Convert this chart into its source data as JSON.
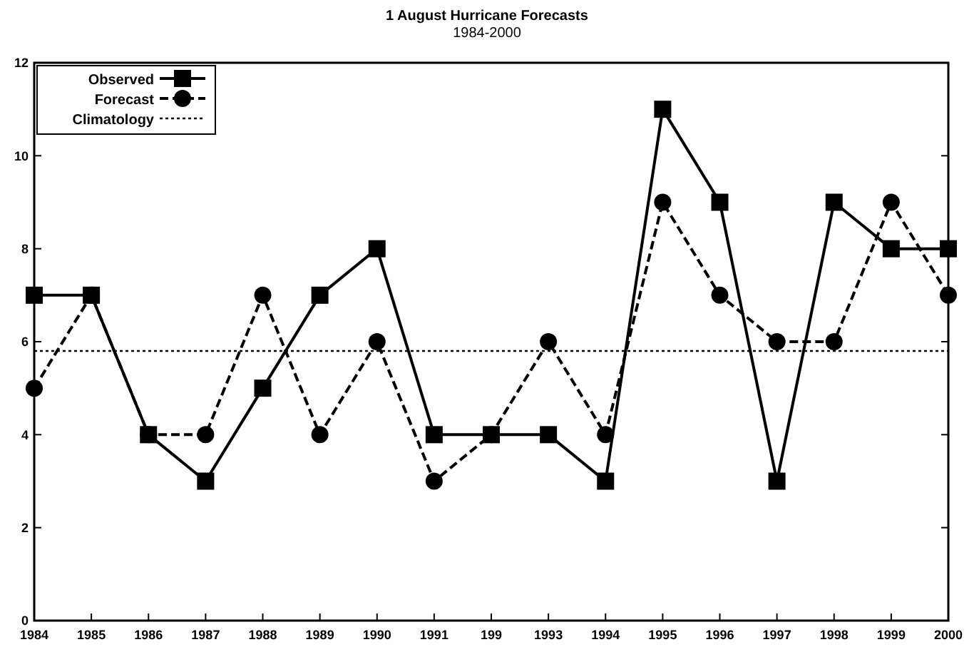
{
  "chart_data": {
    "type": "line",
    "title": "1 August Hurricane Forecasts",
    "subtitle": "1984-2000",
    "categories": [
      "1984",
      "1985",
      "1986",
      "1987",
      "1988",
      "1989",
      "1990",
      "1991",
      "199",
      "1993",
      "1994",
      "1995",
      "1996",
      "1997",
      "1998",
      "1999",
      "2000"
    ],
    "series": [
      {
        "name": "Observed",
        "color": "#000000",
        "marker": "square",
        "line_style": "solid",
        "values": [
          7,
          7,
          4,
          3,
          5,
          7,
          8,
          4,
          4,
          4,
          3,
          11,
          9,
          3,
          9,
          8,
          8
        ]
      },
      {
        "name": "Forecast",
        "color": "#000000",
        "marker": "circle",
        "line_style": "dashed",
        "values": [
          5,
          7,
          4,
          4,
          7,
          4,
          6,
          3,
          4,
          6,
          4,
          9,
          7,
          6,
          6,
          9,
          7
        ]
      },
      {
        "name": "Climatology",
        "color": "#000000",
        "marker": "none",
        "line_style": "dotted",
        "values": [
          5.8,
          5.8,
          5.8,
          5.8,
          5.8,
          5.8,
          5.8,
          5.8,
          5.8,
          5.8,
          5.8,
          5.8,
          5.8,
          5.8,
          5.8,
          5.8,
          5.8
        ]
      }
    ],
    "ylim": [
      0,
      12
    ],
    "yticks": [
      0,
      2,
      4,
      6,
      8,
      10,
      12
    ],
    "grid": false,
    "legend": "top left"
  }
}
